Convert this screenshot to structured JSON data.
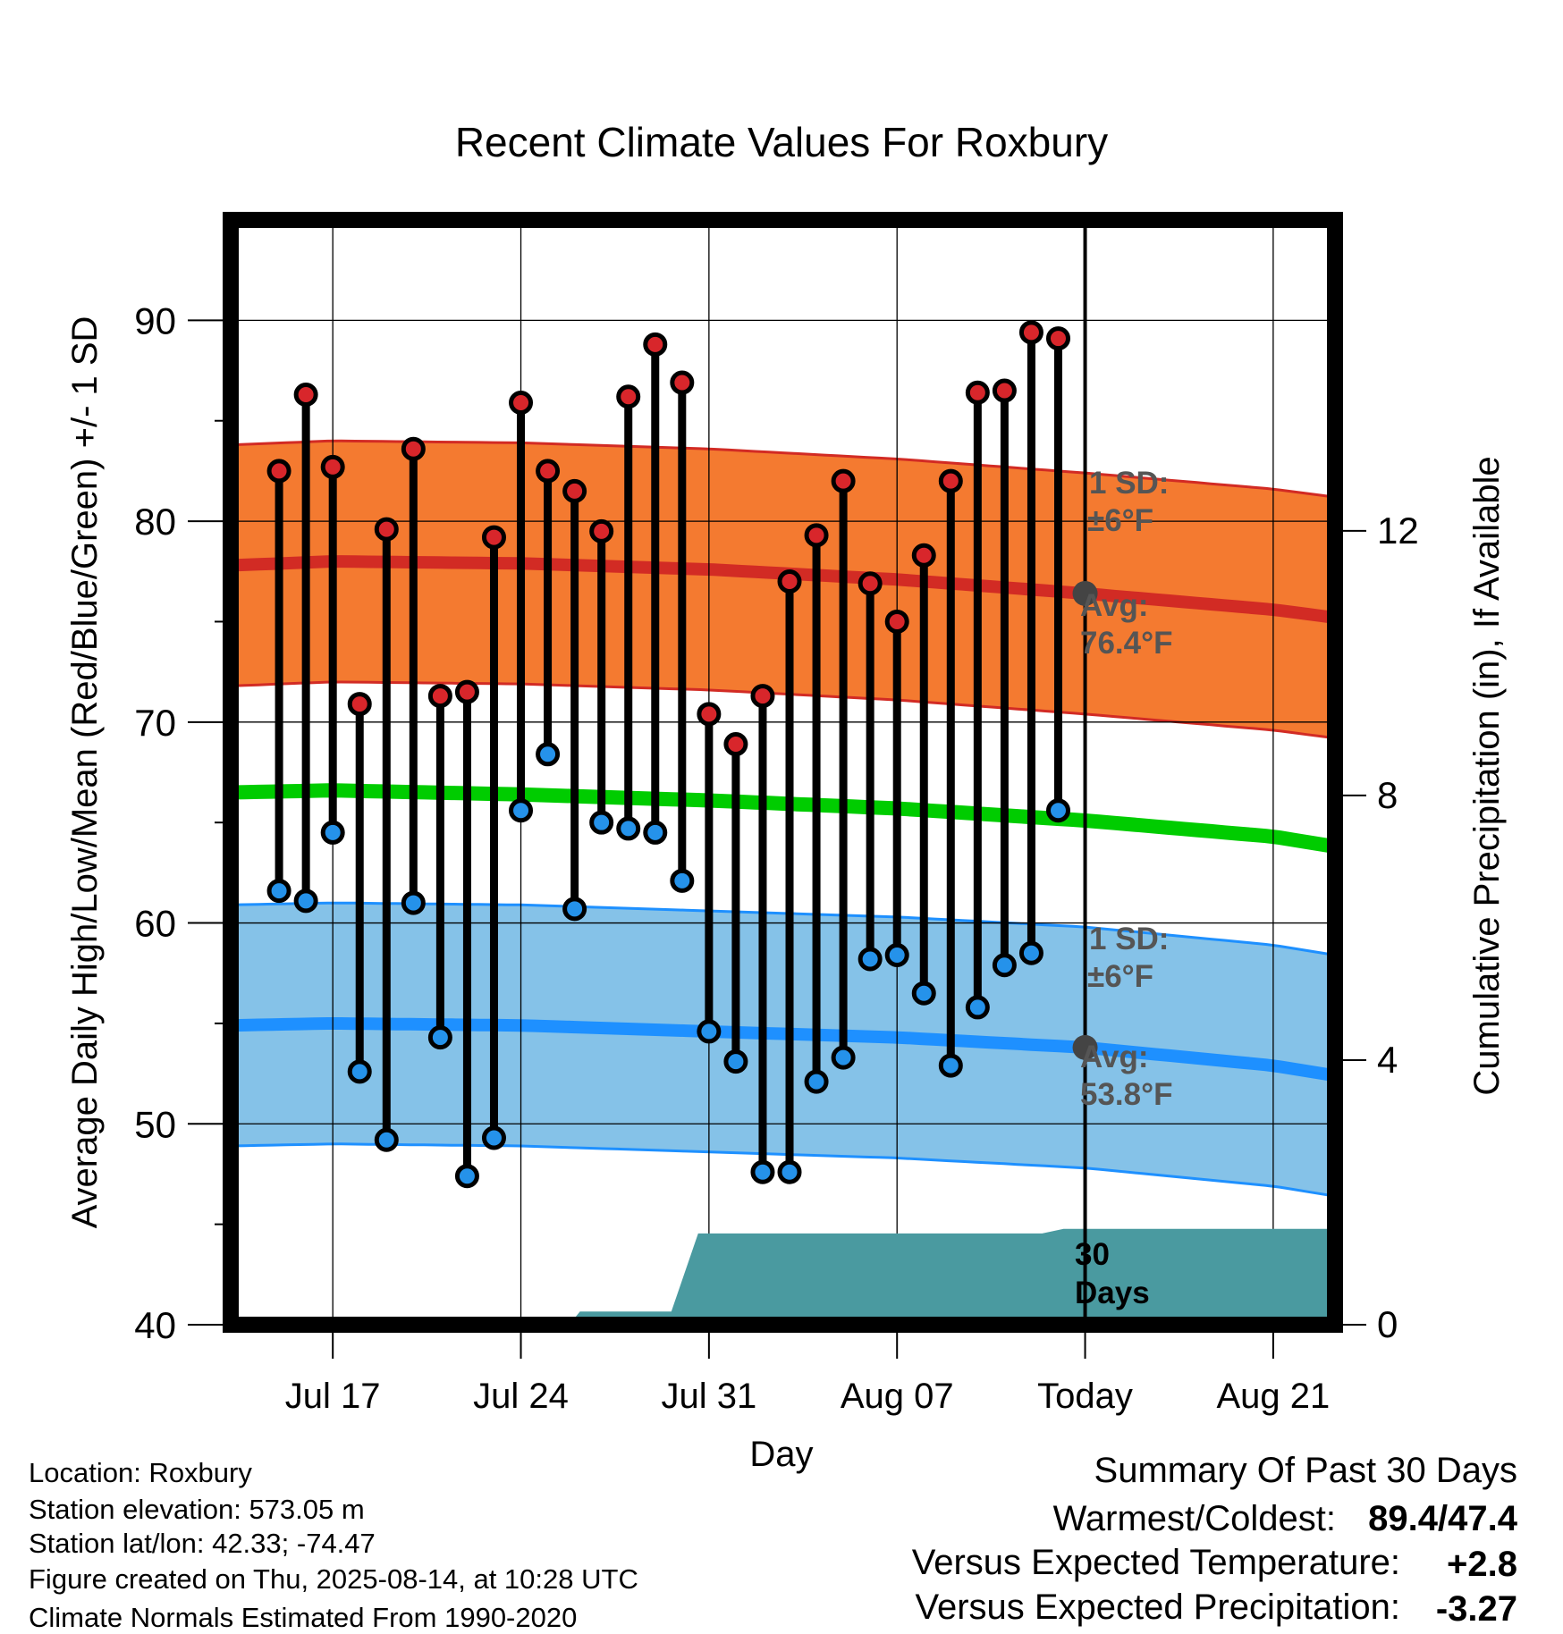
{
  "chart_data": {
    "type": "line",
    "title": "Recent Climate Values For Roxbury",
    "xlabel": "Day",
    "ylabel": "Average Daily High/Low/Mean (Red/Blue/Green) +/- 1 SD",
    "y2label": "Cumulative Precipitation (in), If Available",
    "ylim": [
      40,
      95
    ],
    "y2lim": [
      0,
      16.7
    ],
    "yticks": [
      "40",
      "50",
      "60",
      "70",
      "80",
      "90"
    ],
    "y2ticks": [
      "0",
      "4",
      "8",
      "12"
    ],
    "xlim": [
      13.2,
      54.3
    ],
    "xticks": [
      {
        "label": "Jul 17",
        "day": 17
      },
      {
        "label": "Jul 24",
        "day": 24
      },
      {
        "label": "Jul 31",
        "day": 31
      },
      {
        "label": "Aug 07",
        "day": 38
      },
      {
        "label": "Today",
        "day": 45
      },
      {
        "label": "Aug 21",
        "day": 52
      }
    ],
    "today_day": 45,
    "grid": true,
    "highs": [
      82.5,
      86.3,
      82.7,
      70.9,
      79.6,
      83.6,
      71.3,
      71.5,
      79.2,
      85.9,
      82.5,
      81.5,
      79.5,
      86.2,
      88.8,
      86.9,
      70.4,
      68.9,
      71.3,
      77.0,
      79.3,
      82.0,
      76.9,
      75.0,
      78.3,
      82.0,
      86.4,
      86.5,
      89.4,
      89.1
    ],
    "lows": [
      61.6,
      61.1,
      64.5,
      52.6,
      49.2,
      61.0,
      54.3,
      47.4,
      49.3,
      65.6,
      68.4,
      60.7,
      65.0,
      64.7,
      64.5,
      62.1,
      54.6,
      53.1,
      47.6,
      47.6,
      52.1,
      53.3,
      58.2,
      58.4,
      56.5,
      52.9,
      55.8,
      57.9,
      58.5,
      65.6
    ],
    "normal_high": {
      "day": [
        13.2,
        17,
        24,
        31,
        38,
        45,
        52,
        54.3
      ],
      "mean": [
        77.8,
        78.0,
        77.9,
        77.6,
        77.1,
        76.4,
        75.6,
        75.2
      ],
      "sd": 6
    },
    "normal_low": {
      "day": [
        13.2,
        17,
        24,
        31,
        38,
        45,
        52,
        54.3
      ],
      "mean": [
        54.9,
        55.0,
        54.9,
        54.6,
        54.3,
        53.8,
        52.9,
        52.4
      ],
      "sd": 6
    },
    "normal_mean": {
      "day": [
        13.2,
        17,
        24,
        31,
        38,
        45,
        52,
        54.3
      ],
      "mean": [
        66.5,
        66.6,
        66.4,
        66.1,
        65.7,
        65.1,
        64.3,
        63.8
      ]
    },
    "precip": {
      "day": [
        13.2,
        25.8,
        26.2,
        29.6,
        30.6,
        43.4,
        44.2,
        54.3
      ],
      "value": [
        0,
        0,
        0.2,
        0.2,
        1.38,
        1.38,
        1.45,
        1.45
      ]
    },
    "annotations": {
      "high_sd": {
        "line1": "1 SD:",
        "line2": "±6°F"
      },
      "high_avg": {
        "line1": "Avg:",
        "line2": "76.4°F",
        "value": 76.4
      },
      "low_sd": {
        "line1": "1 SD:",
        "line2": "±6°F"
      },
      "low_avg": {
        "line1": "Avg:",
        "line2": "53.8°F",
        "value": 53.8
      },
      "days": {
        "line1": "30",
        "line2": "Days"
      }
    },
    "colors": {
      "high_band": "#f47a30",
      "high_line": "#d22b24",
      "low_band": "#85c2e8",
      "low_line": "#1e90ff",
      "mean_line": "#00cc00",
      "precip": "#4a9aa0",
      "high_dot": "#d8262b",
      "low_dot": "#2592ea",
      "annot": "#555555"
    }
  },
  "footer": {
    "location": "Location: Roxbury",
    "elevation": "Station elevation: 573.05 m",
    "latlon": "Station lat/lon: 42.33; -74.47",
    "created": "Figure created on Thu, 2025-08-14, at 10:28 UTC",
    "normals": "Climate Normals Estimated From 1990-2020"
  },
  "summary": {
    "heading": "Summary Of Past 30 Days",
    "warm_cold_label": "Warmest/Coldest:",
    "warm_cold_value": "89.4/47.4",
    "temp_label": "Versus Expected Temperature:",
    "temp_value": "+2.8",
    "temp_color": "#d22b24",
    "precip_label": "Versus Expected Precipitation:",
    "precip_value": "-3.27",
    "precip_color": "#a0522d"
  }
}
